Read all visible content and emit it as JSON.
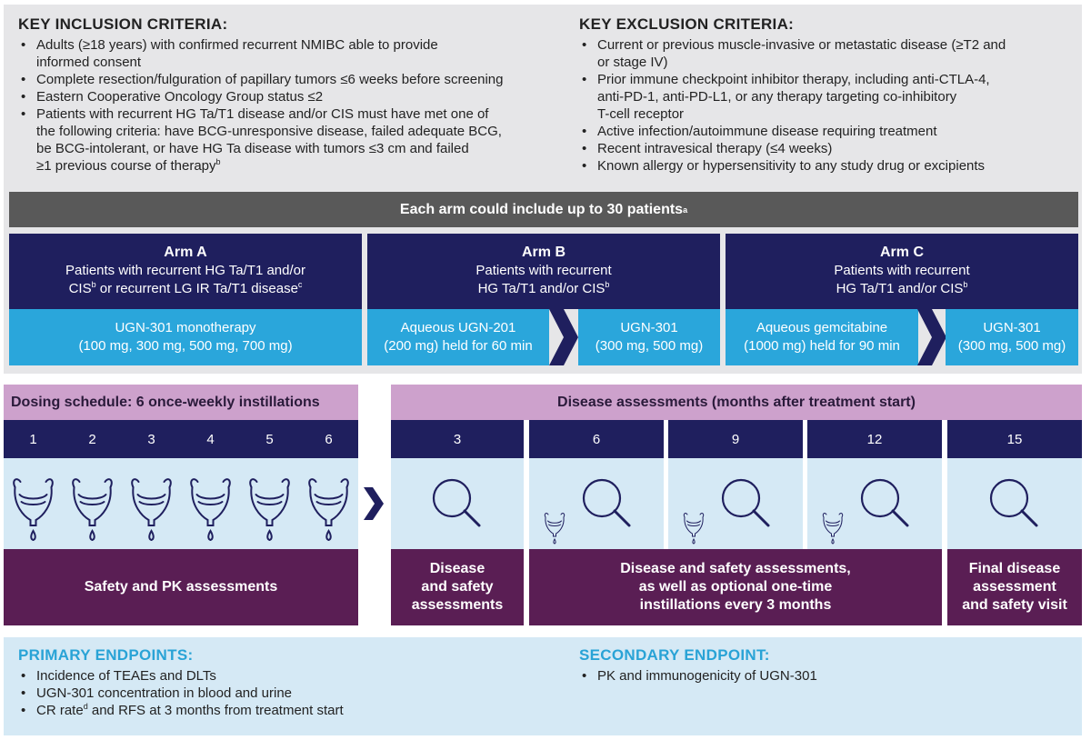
{
  "inclusion": {
    "title": "KEY INCLUSION CRITERIA:",
    "items": [
      {
        "lines": [
          "Adults (≥18 years) with confirmed recurrent NMIBC able to provide",
          "informed consent"
        ]
      },
      {
        "lines": [
          "Complete resection/fulguration of papillary tumors ≤6 weeks before screening"
        ]
      },
      {
        "lines": [
          "Eastern Cooperative Oncology Group status ≤2"
        ]
      },
      {
        "lines": [
          "Patients with recurrent HG Ta/T1 disease and/or CIS must have met one of",
          "the following criteria: have BCG-unresponsive disease, failed adequate BCG,",
          "be BCG-intolerant, or have HG Ta disease with tumors ≤3 cm and failed",
          "≥1 previous course of therapy"
        ],
        "sup": "b"
      }
    ]
  },
  "exclusion": {
    "title": "KEY EXCLUSION CRITERIA:",
    "items": [
      {
        "lines": [
          "Current or previous muscle-invasive or metastatic disease (≥T2 and",
          "or stage IV)"
        ]
      },
      {
        "lines": [
          "Prior immune checkpoint inhibitor therapy, including anti-CTLA-4,",
          "anti-PD-1, anti-PD-L1, or any therapy targeting co-inhibitory",
          "T-cell receptor"
        ]
      },
      {
        "lines": [
          "Active infection/autoimmune disease requiring treatment"
        ]
      },
      {
        "lines": [
          "Recent intravesical therapy (≤4 weeks)"
        ]
      },
      {
        "lines": [
          "Known allergy or hypersensitivity to any study drug or excipients"
        ]
      }
    ]
  },
  "arms_header": {
    "text": "Each arm could include up to 30 patients",
    "sup": "a"
  },
  "arms": {
    "a": {
      "title": "Arm A",
      "desc1": "Patients with recurrent HG Ta/T1 and/or",
      "desc2a": "CIS",
      "desc2_sup1": "b",
      "desc2b": " or recurrent LG IR Ta/T1 disease",
      "desc2_sup2": "c",
      "treat1": "UGN-301 monotherapy",
      "treat2": "(100 mg, 300 mg, 500 mg, 700 mg)"
    },
    "b": {
      "title": "Arm B",
      "desc1": "Patients with recurrent",
      "desc2": "HG Ta/T1 and/or CIS",
      "desc2_sup": "b",
      "left1": "Aqueous UGN-201",
      "left2": "(200 mg) held for 60 min",
      "right1": "UGN-301",
      "right2": "(300 mg, 500 mg)"
    },
    "c": {
      "title": "Arm C",
      "desc1": "Patients with recurrent",
      "desc2": "HG Ta/T1 and/or CIS",
      "desc2_sup": "b",
      "left1": "Aqueous gemcitabine",
      "left2": "(1000 mg) held for 90 min",
      "right1": "UGN-301",
      "right2": "(300 mg, 500 mg)"
    }
  },
  "dosing": {
    "title": "Dosing schedule: 6 once-weekly instillations",
    "weeks": [
      "1",
      "2",
      "3",
      "4",
      "5",
      "6"
    ],
    "footer": "Safety and PK assessments",
    "icon": "bladder-drip-icon"
  },
  "assessments": {
    "title": "Disease assessments (months after treatment start)",
    "months": [
      "3",
      "6",
      "9",
      "12",
      "15"
    ],
    "icon": "magnifier-icon",
    "footer1": [
      "Disease",
      "and safety",
      "assessments"
    ],
    "footer2": [
      "Disease and safety assessments,",
      "as well as optional one-time",
      "instillations every 3 months"
    ],
    "footer3": [
      "Final disease",
      "assessment",
      "and safety visit"
    ]
  },
  "primary": {
    "title": "PRIMARY ENDPOINTS:",
    "items": [
      "Incidence of TEAEs and DLTs",
      "UGN-301 concentration in blood and urine"
    ],
    "last_a": "CR rate",
    "last_sup": "d",
    "last_b": " and RFS at 3 months from treatment start"
  },
  "secondary": {
    "title": "SECONDARY ENDPOINT:",
    "items": [
      "PK and immunogenicity of UGN-301"
    ]
  },
  "colors": {
    "navy": "#1f1f5e",
    "blue": "#2aa6db",
    "pink": "#cda1cc",
    "plum": "#5a1e54",
    "light_blue": "#d5e9f5",
    "grey": "#e6e6e8",
    "dark_grey": "#595959",
    "cyan_title": "#29a3d6"
  }
}
